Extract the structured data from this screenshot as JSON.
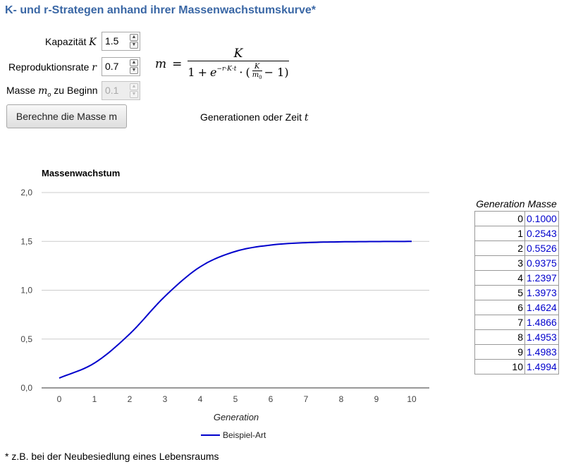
{
  "title": "K- und r-Strategen anhand ihrer Massenwachstumskurve*",
  "inputs": {
    "capacity": {
      "label": "Kapazität ",
      "symbol": "K",
      "value": "1.5"
    },
    "rate": {
      "label": "Reproduktionsrate ",
      "symbol": "r",
      "value": "0.7"
    },
    "start_mass": {
      "label_pre": "Masse ",
      "symbol": "m",
      "sub": "o",
      "label_post": " zu Beginn",
      "value": "0.1"
    }
  },
  "button_label": "Berechne die Masse m",
  "formula": {
    "lhs": "m",
    "eq": "=",
    "numerator": "K",
    "den_one": "1",
    "den_plus": "+",
    "den_e": "e",
    "den_exp": "−r·K·t",
    "den_dot": "·",
    "den_open": "(",
    "den_frac_num": "K",
    "den_frac_den": "m",
    "den_frac_den_sub": "0",
    "den_minus_one": "− 1)"
  },
  "generations_label": "Generationen oder Zeit ",
  "generations_symbol": "t",
  "chart_data": {
    "type": "line",
    "title": "Massenwachstum",
    "xlabel": "Generation",
    "ylabel": "",
    "x": [
      0,
      1,
      2,
      3,
      4,
      5,
      6,
      7,
      8,
      9,
      10
    ],
    "series": [
      {
        "name": "Beispiel-Art",
        "values": [
          0.1,
          0.2543,
          0.5526,
          0.9375,
          1.2397,
          1.3973,
          1.4624,
          1.4866,
          1.4953,
          1.4983,
          1.4994
        ],
        "color": "#0000cc"
      }
    ],
    "xlim": [
      -0.5,
      10.5
    ],
    "ylim": [
      0,
      2
    ],
    "x_ticks": [
      "0",
      "1",
      "2",
      "3",
      "4",
      "5",
      "6",
      "7",
      "8",
      "9",
      "10"
    ],
    "y_ticks": [
      "0,0",
      "0,5",
      "1,0",
      "1,5",
      "2,0"
    ],
    "y_tick_values": [
      0,
      0.5,
      1,
      1.5,
      2
    ],
    "grid": true,
    "legend": "bottom"
  },
  "table": {
    "headers": {
      "generation": "Generation",
      "mass": "Masse"
    },
    "rows": [
      {
        "g": "0",
        "m": "0.1000"
      },
      {
        "g": "1",
        "m": "0.2543"
      },
      {
        "g": "2",
        "m": "0.5526"
      },
      {
        "g": "3",
        "m": "0.9375"
      },
      {
        "g": "4",
        "m": "1.2397"
      },
      {
        "g": "5",
        "m": "1.3973"
      },
      {
        "g": "6",
        "m": "1.4624"
      },
      {
        "g": "7",
        "m": "1.4866"
      },
      {
        "g": "8",
        "m": "1.4953"
      },
      {
        "g": "9",
        "m": "1.4983"
      },
      {
        "g": "10",
        "m": "1.4994"
      }
    ]
  },
  "footnote": "* z.B. bei der Neubesiedlung eines Lebensraums"
}
